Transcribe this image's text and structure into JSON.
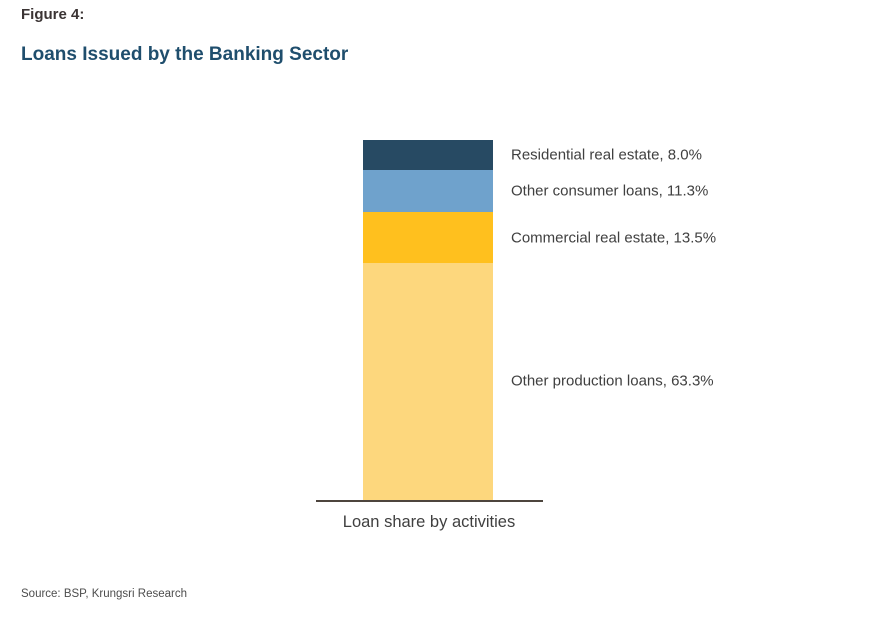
{
  "figure": {
    "label": "Figure 4:",
    "title": "Loans Issued by the Banking Sector"
  },
  "chart_data": {
    "type": "bar",
    "stacked": true,
    "orientation": "vertical",
    "title": "Loans Issued by the Banking Sector",
    "xlabel": "Loan share by activities",
    "ylabel": "",
    "categories": [
      "Loan share by activities"
    ],
    "legend_position": "right-of-bar-data-labels",
    "grid": false,
    "segments": [
      {
        "name": "Residential real estate",
        "value": 8.0,
        "label": "Residential real estate, 8.0%",
        "color": "#274a63"
      },
      {
        "name": "Other consumer loans",
        "value": 11.3,
        "label": "Other consumer loans, 11.3%",
        "color": "#6fa2cc"
      },
      {
        "name": "Commercial real estate",
        "value": 13.5,
        "label": "Commercial real estate, 13.5%",
        "color": "#ffc01e"
      },
      {
        "name": "Other production loans",
        "value": 63.3,
        "label": "Other production loans, 63.3%",
        "color": "#fdd77d"
      }
    ]
  },
  "colors": {
    "figure_label_text": "#3b3434",
    "figure_title_text": "#1f4e6d",
    "data_label_text": "#404040",
    "axis_line": "#4d453e",
    "background": "#ffffff"
  },
  "source": "Source: BSP, Krungsri Research"
}
